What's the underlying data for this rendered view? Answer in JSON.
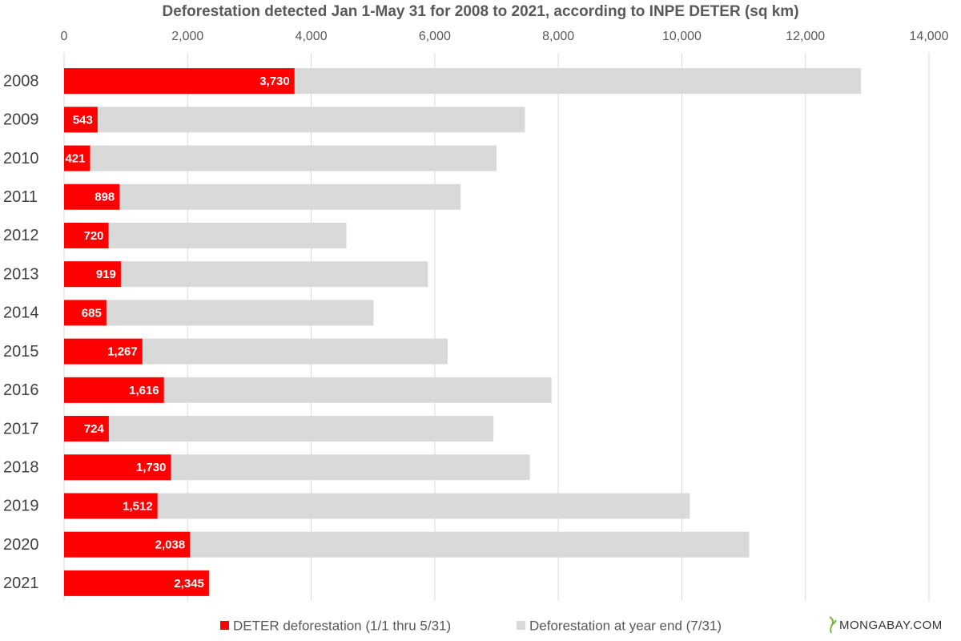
{
  "chart_data": {
    "type": "overlapping_bar",
    "orientation": "horizontal",
    "title": "Deforestation detected Jan 1-May 31 for 2008 to 2021, according to INPE DETER (sq km)",
    "categories": [
      "2008",
      "2009",
      "2010",
      "2011",
      "2012",
      "2013",
      "2014",
      "2015",
      "2016",
      "2017",
      "2018",
      "2019",
      "2020",
      "2021"
    ],
    "series": [
      {
        "name": "Deforestation at year end (7/31)",
        "color": "#d9d9d9",
        "values": [
          12900,
          7460,
          7000,
          6420,
          4570,
          5890,
          5010,
          6210,
          7890,
          6950,
          7540,
          10130,
          11090,
          null
        ]
      },
      {
        "name": "DETER deforestation (1/1 thru 5/31)",
        "color": "#ff0000",
        "values": [
          3730,
          543,
          421,
          898,
          720,
          919,
          685,
          1267,
          1616,
          724,
          1730,
          1512,
          2038,
          2345
        ],
        "value_labels": [
          "3,730",
          "543",
          "421",
          "898",
          "720",
          "919",
          "685",
          "1,267",
          "1,616",
          "724",
          "1,730",
          "1,512",
          "2,038",
          "2,345"
        ]
      }
    ],
    "legend_order": [
      1,
      0
    ],
    "xlim": [
      0,
      14000
    ],
    "xticks": [
      0,
      {
        "value": 2000,
        "label": "2,000"
      },
      {
        "value": 4000,
        "label": "4,000"
      },
      {
        "value": 6000,
        "label": "6,000"
      },
      {
        "value": 8000,
        "label": "8,000"
      },
      {
        "value": 10000,
        "label": "10,000"
      },
      {
        "value": 12000,
        "label": "12,000"
      },
      {
        "value": 14000,
        "label": "14,000"
      }
    ],
    "grid": true,
    "legend_position": "bottom",
    "source": "MONGABAY.COM"
  }
}
